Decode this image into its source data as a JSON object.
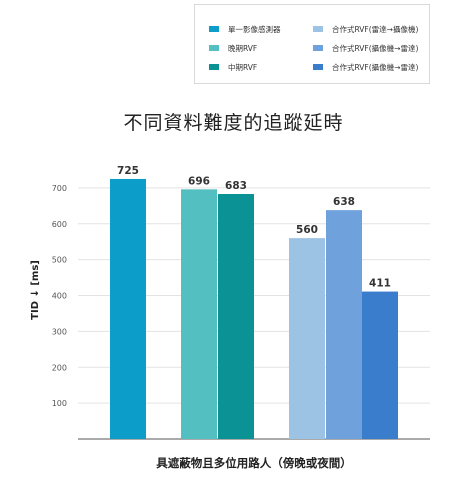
{
  "chart_data": {
    "type": "bar",
    "title": "不同資料難度的追蹤延時",
    "xlabel": "具遮蔽物且多位用路人（傍晚或夜間）",
    "ylabel": "TID ↓ [ms]",
    "ylim": [
      0,
      800
    ],
    "yticks": [
      100,
      200,
      300,
      400,
      500,
      600,
      700
    ],
    "grid": true,
    "legend_position": "top-right",
    "series": [
      {
        "name": "單一影像感測器",
        "value": 725,
        "color": "#0c9dc8"
      },
      {
        "name": "晚期RVF",
        "value": 696,
        "color": "#54bfc0"
      },
      {
        "name": "中期RVF",
        "value": 683,
        "color": "#0a9294"
      },
      {
        "name": "合作式RVF(雷達→攝像機)",
        "value": 560,
        "color": "#9cc2e4"
      },
      {
        "name": "合作式RVF(攝像機→雷達)",
        "value": 638,
        "color": "#6fa1dc"
      },
      {
        "name": "合作式RVF(攝像機→雷達)",
        "value": 411,
        "color": "#3a7dcc"
      }
    ]
  }
}
